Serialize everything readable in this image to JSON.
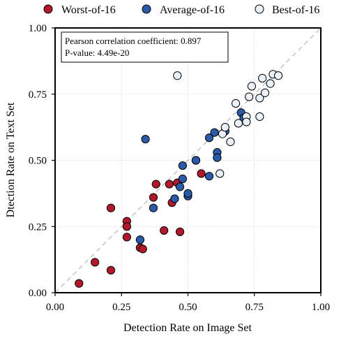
{
  "chart_data": {
    "type": "scatter",
    "xlabel": "Detection Rate on Image Set",
    "ylabel": "Dtection Rate on Text Set",
    "xlim": [
      0,
      1
    ],
    "ylim": [
      0,
      1
    ],
    "xticks": [
      "0.00",
      "0.25",
      "0.50",
      "0.75",
      "1.00"
    ],
    "yticks": [
      "0.00",
      "0.25",
      "0.50",
      "0.75",
      "1.00"
    ],
    "grid": true,
    "diagonal_reference_line": true,
    "legend_position": "top, outside plot",
    "stats": {
      "pearson": "Pearson correlation coefficient: 0.897",
      "pvalue": "P-value: 4.49e-20"
    },
    "series": [
      {
        "name": "Worst-of-16",
        "color": "#b2182b",
        "points": [
          [
            0.09,
            0.035
          ],
          [
            0.15,
            0.115
          ],
          [
            0.21,
            0.085
          ],
          [
            0.21,
            0.32
          ],
          [
            0.27,
            0.27
          ],
          [
            0.27,
            0.25
          ],
          [
            0.27,
            0.21
          ],
          [
            0.32,
            0.17
          ],
          [
            0.33,
            0.165
          ],
          [
            0.37,
            0.36
          ],
          [
            0.38,
            0.41
          ],
          [
            0.41,
            0.235
          ],
          [
            0.43,
            0.41
          ],
          [
            0.44,
            0.34
          ],
          [
            0.46,
            0.415
          ],
          [
            0.47,
            0.23
          ],
          [
            0.53,
            0.5
          ],
          [
            0.55,
            0.45
          ]
        ]
      },
      {
        "name": "Average-of-16",
        "color": "#2b5ba8",
        "points": [
          [
            0.32,
            0.2
          ],
          [
            0.34,
            0.58
          ],
          [
            0.37,
            0.32
          ],
          [
            0.45,
            0.355
          ],
          [
            0.47,
            0.4
          ],
          [
            0.48,
            0.43
          ],
          [
            0.48,
            0.48
          ],
          [
            0.5,
            0.365
          ],
          [
            0.5,
            0.375
          ],
          [
            0.53,
            0.5
          ],
          [
            0.58,
            0.44
          ],
          [
            0.58,
            0.585
          ],
          [
            0.6,
            0.605
          ],
          [
            0.61,
            0.53
          ],
          [
            0.61,
            0.51
          ],
          [
            0.64,
            0.61
          ],
          [
            0.7,
            0.68
          ],
          [
            0.71,
            0.66
          ]
        ]
      },
      {
        "name": "Best-of-16",
        "color": "#eaf1f8",
        "points": [
          [
            0.46,
            0.82
          ],
          [
            0.62,
            0.45
          ],
          [
            0.63,
            0.6
          ],
          [
            0.64,
            0.625
          ],
          [
            0.66,
            0.57
          ],
          [
            0.68,
            0.715
          ],
          [
            0.69,
            0.64
          ],
          [
            0.72,
            0.665
          ],
          [
            0.72,
            0.645
          ],
          [
            0.73,
            0.74
          ],
          [
            0.74,
            0.78
          ],
          [
            0.77,
            0.735
          ],
          [
            0.77,
            0.665
          ],
          [
            0.78,
            0.81
          ],
          [
            0.79,
            0.755
          ],
          [
            0.81,
            0.79
          ],
          [
            0.82,
            0.825
          ],
          [
            0.84,
            0.82
          ]
        ]
      }
    ]
  }
}
